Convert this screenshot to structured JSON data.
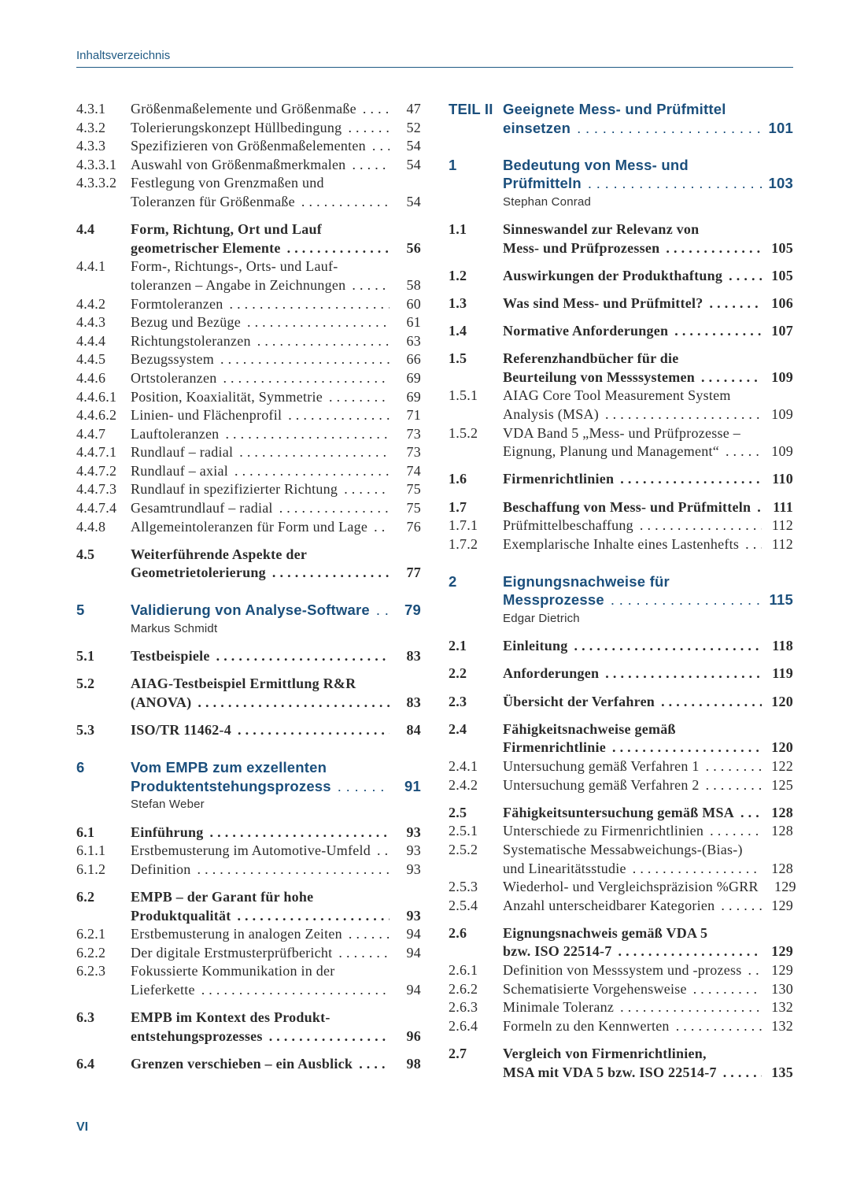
{
  "header": {
    "title": "Inhaltsverzeichnis"
  },
  "footer": {
    "folio": "VI"
  },
  "accent_color": "#1b4f7c",
  "left": [
    {
      "type": "s",
      "num": "4.3.1",
      "lines": [
        "Größenmaßelemente und Größenmaße"
      ],
      "page": "47"
    },
    {
      "type": "s",
      "num": "4.3.2",
      "lines": [
        "Tolerierungskonzept Hüllbedingung"
      ],
      "page": "52"
    },
    {
      "type": "s",
      "num": "4.3.3",
      "lines": [
        "Spezifizieren von Größenmaßelementen"
      ],
      "page": "54"
    },
    {
      "type": "s",
      "num": "4.3.3.1",
      "lines": [
        "Auswahl von Größenmaßmerkmalen"
      ],
      "page": "54"
    },
    {
      "type": "s",
      "num": "4.3.3.2",
      "lines": [
        "Festlegung von Grenzmaßen und",
        "Toleranzen für Größenmaße"
      ],
      "page": "54"
    },
    {
      "type": "b",
      "num": "4.4",
      "lines": [
        "Form, Richtung, Ort und Lauf",
        "geometrischer Elemente"
      ],
      "page": "56"
    },
    {
      "type": "s",
      "num": "4.4.1",
      "lines": [
        "Form-, Richtungs-, Orts- und Lauf-",
        "toleranzen – Angabe in Zeichnungen"
      ],
      "page": "58"
    },
    {
      "type": "s",
      "num": "4.4.2",
      "lines": [
        "Formtoleranzen"
      ],
      "page": "60"
    },
    {
      "type": "s",
      "num": "4.4.3",
      "lines": [
        "Bezug und Bezüge"
      ],
      "page": "61"
    },
    {
      "type": "s",
      "num": "4.4.4",
      "lines": [
        "Richtungstoleranzen"
      ],
      "page": "63"
    },
    {
      "type": "s",
      "num": "4.4.5",
      "lines": [
        "Bezugssystem"
      ],
      "page": "66"
    },
    {
      "type": "s",
      "num": "4.4.6",
      "lines": [
        "Ortstoleranzen"
      ],
      "page": "69"
    },
    {
      "type": "s",
      "num": "4.4.6.1",
      "lines": [
        "Position, Koaxialität, Symmetrie"
      ],
      "page": "69"
    },
    {
      "type": "s",
      "num": "4.4.6.2",
      "lines": [
        "Linien- und Flächenprofil"
      ],
      "page": "71"
    },
    {
      "type": "s",
      "num": "4.4.7",
      "lines": [
        "Lauftoleranzen"
      ],
      "page": "73"
    },
    {
      "type": "s",
      "num": "4.4.7.1",
      "lines": [
        "Rundlauf – radial"
      ],
      "page": "73"
    },
    {
      "type": "s",
      "num": "4.4.7.2",
      "lines": [
        "Rundlauf – axial"
      ],
      "page": "74"
    },
    {
      "type": "s",
      "num": "4.4.7.3",
      "lines": [
        "Rundlauf in spezifizierter Richtung"
      ],
      "page": "75"
    },
    {
      "type": "s",
      "num": "4.4.7.4",
      "lines": [
        "Gesamtrundlauf – radial"
      ],
      "page": "75"
    },
    {
      "type": "s",
      "num": "4.4.8",
      "lines": [
        "Allgemeintoleranzen für Form und Lage"
      ],
      "page": "76"
    },
    {
      "type": "b",
      "num": "4.5",
      "lines": [
        "Weiterführende Aspekte der",
        "Geometrietolerierung"
      ],
      "page": "77"
    },
    {
      "type": "c",
      "num": "5",
      "lines": [
        "Validierung von Analyse-Software"
      ],
      "page": "79",
      "author": "Markus Schmidt"
    },
    {
      "type": "b",
      "num": "5.1",
      "lines": [
        "Testbeispiele"
      ],
      "page": "83"
    },
    {
      "type": "b",
      "num": "5.2",
      "lines": [
        "AIAG-Testbeispiel Ermittlung R&R",
        "(ANOVA)"
      ],
      "page": "83"
    },
    {
      "type": "b",
      "num": "5.3",
      "lines": [
        "ISO/TR 11462-4"
      ],
      "page": "84"
    },
    {
      "type": "c",
      "num": "6",
      "lines": [
        "Vom EMPB zum exzellenten",
        "Produktentstehungsprozess"
      ],
      "page": "91",
      "author": "Stefan Weber"
    },
    {
      "type": "b",
      "num": "6.1",
      "lines": [
        "Einführung"
      ],
      "page": "93"
    },
    {
      "type": "s",
      "num": "6.1.1",
      "lines": [
        "Erstbemusterung im Automotive-Umfeld"
      ],
      "page": "93"
    },
    {
      "type": "s",
      "num": "6.1.2",
      "lines": [
        "Definition"
      ],
      "page": "93"
    },
    {
      "type": "b",
      "num": "6.2",
      "lines": [
        "EMPB – der Garant für hohe",
        "Produktqualität"
      ],
      "page": "93"
    },
    {
      "type": "s",
      "num": "6.2.1",
      "lines": [
        "Erstbemusterung in analogen Zeiten"
      ],
      "page": "94"
    },
    {
      "type": "s",
      "num": "6.2.2",
      "lines": [
        "Der digitale Erstmusterprüfbericht"
      ],
      "page": "94"
    },
    {
      "type": "s",
      "num": "6.2.3",
      "lines": [
        "Fokussierte Kommunikation in der",
        "Lieferkette"
      ],
      "page": "94"
    },
    {
      "type": "b",
      "num": "6.3",
      "lines": [
        "EMPB im Kontext des Produkt-",
        "entstehungsprozesses"
      ],
      "page": "96"
    },
    {
      "type": "b",
      "num": "6.4",
      "lines": [
        "Grenzen verschieben – ein Ausblick"
      ],
      "page": "98"
    }
  ],
  "right": [
    {
      "type": "p",
      "num": "TEIL II",
      "lines": [
        "Geeignete Mess- und Prüfmittel",
        "einsetzen"
      ],
      "page": "101"
    },
    {
      "type": "c",
      "num": "1",
      "lines": [
        "Bedeutung von Mess- und",
        "Prüfmitteln"
      ],
      "page": "103",
      "author": "Stephan Conrad"
    },
    {
      "type": "b",
      "num": "1.1",
      "lines": [
        "Sinneswandel zur Relevanz von",
        "Mess- und Prüfprozessen"
      ],
      "page": "105"
    },
    {
      "type": "b",
      "num": "1.2",
      "lines": [
        "Auswirkungen der Produkthaftung"
      ],
      "page": "105"
    },
    {
      "type": "b",
      "num": "1.3",
      "lines": [
        "Was sind Mess- und Prüfmittel?"
      ],
      "page": "106"
    },
    {
      "type": "b",
      "num": "1.4",
      "lines": [
        "Normative Anforderungen"
      ],
      "page": "107"
    },
    {
      "type": "b",
      "num": "1.5",
      "lines": [
        "Referenzhandbücher für die",
        "Beurteilung von Messsystemen"
      ],
      "page": "109"
    },
    {
      "type": "s",
      "num": "1.5.1",
      "lines": [
        "AIAG Core Tool Measurement System",
        "Analysis (MSA)"
      ],
      "page": "109"
    },
    {
      "type": "s",
      "num": "1.5.2",
      "lines": [
        "VDA Band 5 „Mess- und Prüfprozesse –",
        "Eignung, Planung und Management“"
      ],
      "page": "109"
    },
    {
      "type": "b",
      "num": "1.6",
      "lines": [
        "Firmenrichtlinien"
      ],
      "page": "110"
    },
    {
      "type": "b",
      "num": "1.7",
      "lines": [
        "Beschaffung von Mess- und Prüfmitteln"
      ],
      "page": "111"
    },
    {
      "type": "s",
      "num": "1.7.1",
      "lines": [
        "Prüfmittelbeschaffung"
      ],
      "page": "112"
    },
    {
      "type": "s",
      "num": "1.7.2",
      "lines": [
        "Exemplarische Inhalte eines Lastenhefts"
      ],
      "page": "112"
    },
    {
      "type": "c",
      "num": "2",
      "lines": [
        "Eignungsnachweise für",
        "Messprozesse"
      ],
      "page": "115",
      "author": "Edgar Dietrich"
    },
    {
      "type": "b",
      "num": "2.1",
      "lines": [
        "Einleitung"
      ],
      "page": "118"
    },
    {
      "type": "b",
      "num": "2.2",
      "lines": [
        "Anforderungen"
      ],
      "page": "119"
    },
    {
      "type": "b",
      "num": "2.3",
      "lines": [
        "Übersicht der Verfahren"
      ],
      "page": "120"
    },
    {
      "type": "b",
      "num": "2.4",
      "lines": [
        "Fähigkeitsnachweise gemäß",
        "Firmenrichtlinie"
      ],
      "page": "120"
    },
    {
      "type": "s",
      "num": "2.4.1",
      "lines": [
        "Untersuchung gemäß Verfahren 1"
      ],
      "page": "122"
    },
    {
      "type": "s",
      "num": "2.4.2",
      "lines": [
        "Untersuchung gemäß Verfahren 2"
      ],
      "page": "125"
    },
    {
      "type": "b",
      "num": "2.5",
      "lines": [
        "Fähigkeitsuntersuchung gemäß MSA"
      ],
      "page": "128"
    },
    {
      "type": "s",
      "num": "2.5.1",
      "lines": [
        "Unterschiede zu Firmenrichtlinien"
      ],
      "page": "128"
    },
    {
      "type": "s",
      "num": "2.5.2",
      "lines": [
        "Systematische Messabweichungs-(Bias-)",
        "und Linearitätsstudie"
      ],
      "page": "128"
    },
    {
      "type": "s",
      "num": "2.5.3",
      "lines": [
        "Wiederhol- und Vergleichspräzision %GRR"
      ],
      "page": "129"
    },
    {
      "type": "s",
      "num": "2.5.4",
      "lines": [
        "Anzahl unterscheidbarer Kategorien"
      ],
      "page": "129"
    },
    {
      "type": "b",
      "num": "2.6",
      "lines": [
        "Eignungsnachweis gemäß VDA 5",
        "bzw. ISO 22514-7"
      ],
      "page": "129"
    },
    {
      "type": "s",
      "num": "2.6.1",
      "lines": [
        "Definition von Messsystem und -prozess"
      ],
      "page": "129"
    },
    {
      "type": "s",
      "num": "2.6.2",
      "lines": [
        "Schematisierte Vorgehensweise"
      ],
      "page": "130"
    },
    {
      "type": "s",
      "num": "2.6.3",
      "lines": [
        "Minimale Toleranz"
      ],
      "page": "132"
    },
    {
      "type": "s",
      "num": "2.6.4",
      "lines": [
        "Formeln zu den Kennwerten"
      ],
      "page": "132"
    },
    {
      "type": "b",
      "num": "2.7",
      "lines": [
        "Vergleich von Firmenrichtlinien,",
        "MSA mit VDA 5 bzw. ISO 22514-7"
      ],
      "page": "135"
    }
  ]
}
